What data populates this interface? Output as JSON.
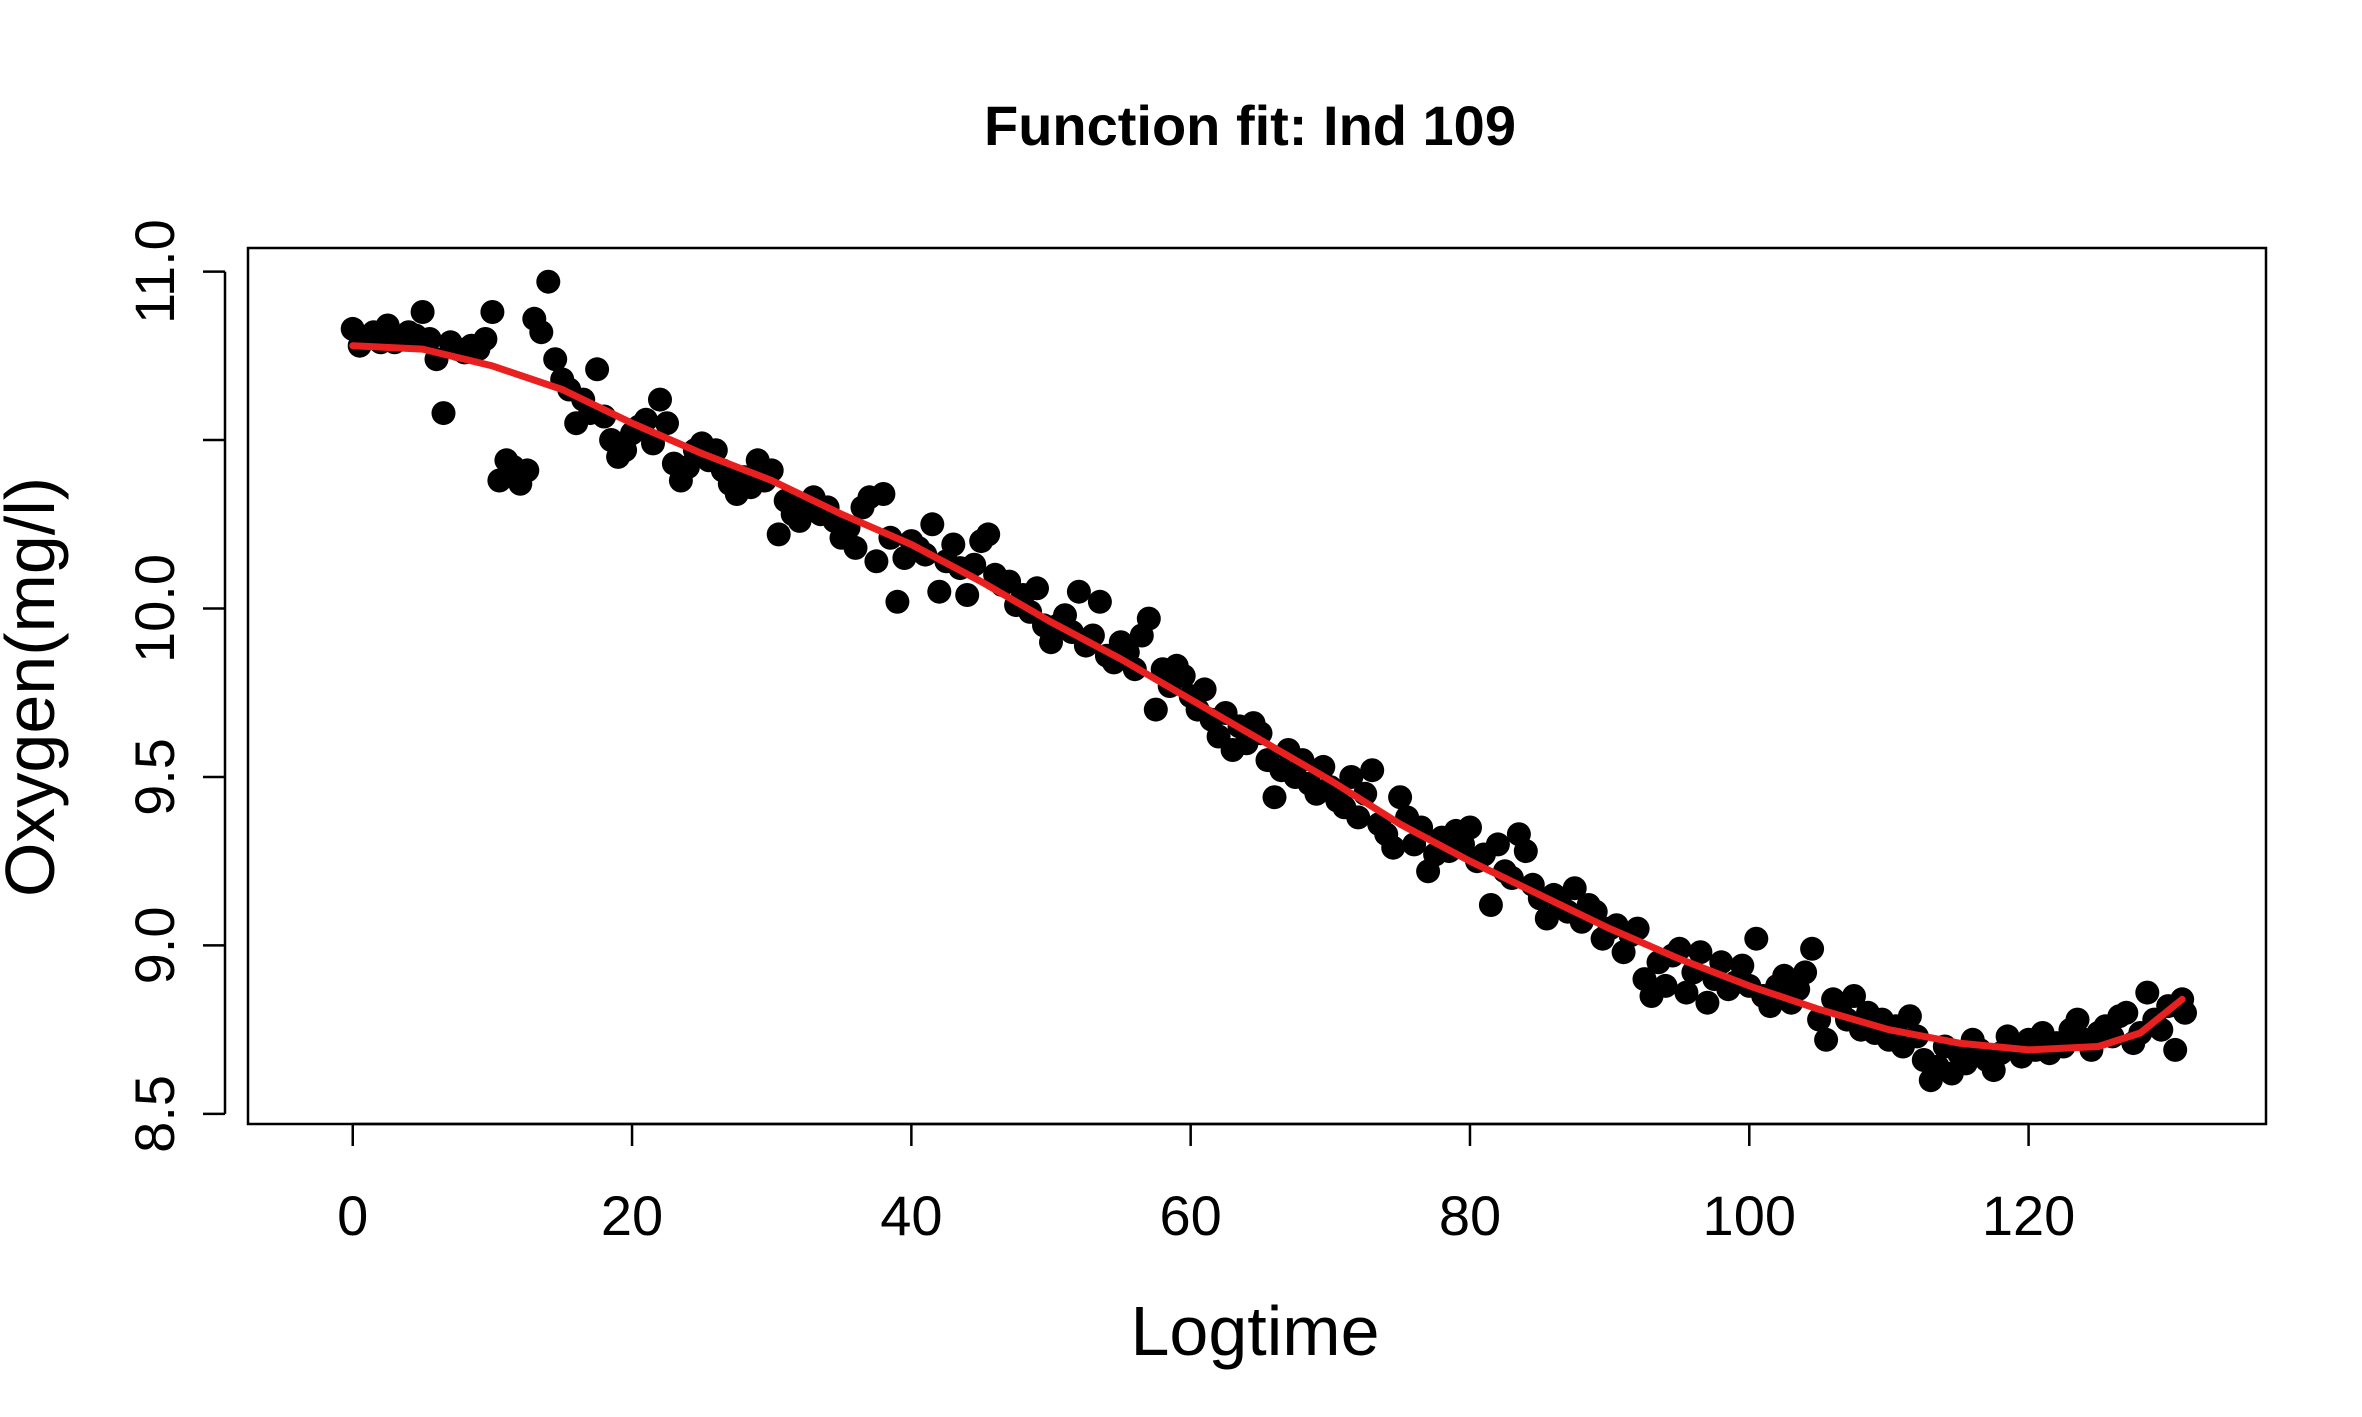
{
  "chart_data": {
    "type": "scatter",
    "title": "Function fit: Ind 109",
    "xlabel": "Logtime",
    "ylabel": "Oxygen(mg/l)",
    "xlim": [
      -7.5,
      137
    ],
    "ylim": [
      8.47,
      11.07
    ],
    "x_ticks": [
      0,
      20,
      40,
      60,
      80,
      100,
      120
    ],
    "x_tick_labels": [
      "0",
      "20",
      "40",
      "60",
      "80",
      "100",
      "120"
    ],
    "y_ticks": [
      8.5,
      9.0,
      9.5,
      10.0,
      10.5,
      11.0
    ],
    "y_tick_labels": [
      "8.5",
      "9.0",
      "9.5",
      "10.0",
      "",
      "11.0"
    ],
    "grid": false,
    "legend": "none",
    "series": [
      {
        "type": "scatter",
        "color": "#000000",
        "points": [
          [
            0,
            10.83
          ],
          [
            0.5,
            10.78
          ],
          [
            1,
            10.8
          ],
          [
            1.5,
            10.82
          ],
          [
            2,
            10.79
          ],
          [
            2.5,
            10.84
          ],
          [
            3,
            10.79
          ],
          [
            3.5,
            10.8
          ],
          [
            4,
            10.82
          ],
          [
            4.5,
            10.81
          ],
          [
            5,
            10.88
          ],
          [
            5.5,
            10.8
          ],
          [
            6,
            10.74
          ],
          [
            6.5,
            10.58
          ],
          [
            7,
            10.79
          ],
          [
            7.5,
            10.77
          ],
          [
            8,
            10.76
          ],
          [
            8.5,
            10.78
          ],
          [
            9,
            10.77
          ],
          [
            9.5,
            10.8
          ],
          [
            10,
            10.88
          ],
          [
            10.5,
            10.38
          ],
          [
            11,
            10.44
          ],
          [
            11.5,
            10.42
          ],
          [
            12,
            10.37
          ],
          [
            12.5,
            10.41
          ],
          [
            13,
            10.86
          ],
          [
            13.5,
            10.82
          ],
          [
            14,
            10.97
          ],
          [
            14.5,
            10.74
          ],
          [
            15,
            10.68
          ],
          [
            15.5,
            10.65
          ],
          [
            16,
            10.55
          ],
          [
            16.5,
            10.62
          ],
          [
            17,
            10.58
          ],
          [
            17.5,
            10.71
          ],
          [
            18,
            10.57
          ],
          [
            18.5,
            10.5
          ],
          [
            19,
            10.45
          ],
          [
            19.5,
            10.47
          ],
          [
            20,
            10.52
          ],
          [
            20.5,
            10.54
          ],
          [
            21,
            10.56
          ],
          [
            21.5,
            10.49
          ],
          [
            22,
            10.62
          ],
          [
            22.5,
            10.55
          ],
          [
            23,
            10.43
          ],
          [
            23.5,
            10.38
          ],
          [
            24,
            10.42
          ],
          [
            24.5,
            10.47
          ],
          [
            25,
            10.49
          ],
          [
            25.5,
            10.44
          ],
          [
            26,
            10.47
          ],
          [
            26.5,
            10.41
          ],
          [
            27,
            10.37
          ],
          [
            27.5,
            10.34
          ],
          [
            28,
            10.39
          ],
          [
            28.5,
            10.36
          ],
          [
            29,
            10.44
          ],
          [
            29.5,
            10.38
          ],
          [
            30,
            10.41
          ],
          [
            30.5,
            10.22
          ],
          [
            31,
            10.32
          ],
          [
            31.5,
            10.28
          ],
          [
            32,
            10.26
          ],
          [
            32.5,
            10.31
          ],
          [
            33,
            10.33
          ],
          [
            33.5,
            10.28
          ],
          [
            34,
            10.3
          ],
          [
            34.5,
            10.26
          ],
          [
            35,
            10.21
          ],
          [
            35.5,
            10.24
          ],
          [
            36,
            10.18
          ],
          [
            36.5,
            10.3
          ],
          [
            37,
            10.33
          ],
          [
            37.5,
            10.14
          ],
          [
            38,
            10.34
          ],
          [
            38.5,
            10.21
          ],
          [
            39,
            10.02
          ],
          [
            39.5,
            10.15
          ],
          [
            40,
            10.2
          ],
          [
            40.5,
            10.18
          ],
          [
            41,
            10.16
          ],
          [
            41.5,
            10.25
          ],
          [
            42,
            10.05
          ],
          [
            42.5,
            10.14
          ],
          [
            43,
            10.19
          ],
          [
            43.5,
            10.12
          ],
          [
            44,
            10.04
          ],
          [
            44.5,
            10.13
          ],
          [
            45,
            10.2
          ],
          [
            45.5,
            10.22
          ],
          [
            46,
            10.1
          ],
          [
            46.5,
            10.07
          ],
          [
            47,
            10.08
          ],
          [
            47.5,
            10.01
          ],
          [
            48,
            10.04
          ],
          [
            48.5,
            9.99
          ],
          [
            49,
            10.06
          ],
          [
            49.5,
            9.95
          ],
          [
            50,
            9.9
          ],
          [
            50.5,
            9.95
          ],
          [
            51,
            9.98
          ],
          [
            51.5,
            9.93
          ],
          [
            52,
            10.05
          ],
          [
            52.5,
            9.89
          ],
          [
            53,
            9.92
          ],
          [
            53.5,
            10.02
          ],
          [
            54,
            9.86
          ],
          [
            54.5,
            9.84
          ],
          [
            55,
            9.9
          ],
          [
            55.5,
            9.87
          ],
          [
            56,
            9.82
          ],
          [
            56.5,
            9.92
          ],
          [
            57,
            9.97
          ],
          [
            57.5,
            9.7
          ],
          [
            58,
            9.82
          ],
          [
            58.5,
            9.77
          ],
          [
            59,
            9.83
          ],
          [
            59.5,
            9.8
          ],
          [
            60,
            9.74
          ],
          [
            60.5,
            9.7
          ],
          [
            61,
            9.76
          ],
          [
            61.5,
            9.67
          ],
          [
            62,
            9.62
          ],
          [
            62.5,
            9.69
          ],
          [
            63,
            9.58
          ],
          [
            63.5,
            9.65
          ],
          [
            64,
            9.6
          ],
          [
            64.5,
            9.66
          ],
          [
            65,
            9.63
          ],
          [
            65.5,
            9.55
          ],
          [
            66,
            9.44
          ],
          [
            66.5,
            9.52
          ],
          [
            67,
            9.58
          ],
          [
            67.5,
            9.5
          ],
          [
            68,
            9.55
          ],
          [
            68.5,
            9.48
          ],
          [
            69,
            9.45
          ],
          [
            69.5,
            9.53
          ],
          [
            70,
            9.47
          ],
          [
            70.5,
            9.43
          ],
          [
            71,
            9.41
          ],
          [
            71.5,
            9.5
          ],
          [
            72,
            9.38
          ],
          [
            72.5,
            9.45
          ],
          [
            73,
            9.52
          ],
          [
            73.5,
            9.36
          ],
          [
            74,
            9.33
          ],
          [
            74.5,
            9.29
          ],
          [
            75,
            9.44
          ],
          [
            75.5,
            9.38
          ],
          [
            76,
            9.3
          ],
          [
            76.5,
            9.35
          ],
          [
            77,
            9.22
          ],
          [
            77.5,
            9.27
          ],
          [
            78,
            9.32
          ],
          [
            78.5,
            9.28
          ],
          [
            79,
            9.34
          ],
          [
            79.5,
            9.3
          ],
          [
            80,
            9.35
          ],
          [
            80.5,
            9.25
          ],
          [
            81,
            9.27
          ],
          [
            81.5,
            9.12
          ],
          [
            82,
            9.3
          ],
          [
            82.5,
            9.22
          ],
          [
            83,
            9.2
          ],
          [
            83.5,
            9.33
          ],
          [
            84,
            9.28
          ],
          [
            84.5,
            9.18
          ],
          [
            85,
            9.14
          ],
          [
            85.5,
            9.08
          ],
          [
            86,
            9.15
          ],
          [
            86.5,
            9.12
          ],
          [
            87,
            9.1
          ],
          [
            87.5,
            9.17
          ],
          [
            88,
            9.07
          ],
          [
            88.5,
            9.12
          ],
          [
            89,
            9.1
          ],
          [
            89.5,
            9.02
          ],
          [
            90,
            9.05
          ],
          [
            90.5,
            9.06
          ],
          [
            91,
            8.98
          ],
          [
            91.5,
            9.03
          ],
          [
            92,
            9.05
          ],
          [
            92.5,
            8.9
          ],
          [
            93,
            8.85
          ],
          [
            93.5,
            8.95
          ],
          [
            94,
            8.88
          ],
          [
            94.5,
            8.97
          ],
          [
            95,
            8.99
          ],
          [
            95.5,
            8.86
          ],
          [
            96,
            8.92
          ],
          [
            96.5,
            8.98
          ],
          [
            97,
            8.83
          ],
          [
            97.5,
            8.9
          ],
          [
            98,
            8.95
          ],
          [
            98.5,
            8.87
          ],
          [
            99,
            8.89
          ],
          [
            99.5,
            8.94
          ],
          [
            100,
            8.88
          ],
          [
            100.5,
            9.02
          ],
          [
            101,
            8.85
          ],
          [
            101.5,
            8.82
          ],
          [
            102,
            8.88
          ],
          [
            102.5,
            8.91
          ],
          [
            103,
            8.83
          ],
          [
            103.5,
            8.87
          ],
          [
            104,
            8.92
          ],
          [
            104.5,
            8.99
          ],
          [
            105,
            8.78
          ],
          [
            105.5,
            8.72
          ],
          [
            106,
            8.84
          ],
          [
            106.5,
            8.82
          ],
          [
            107,
            8.78
          ],
          [
            107.5,
            8.85
          ],
          [
            108,
            8.75
          ],
          [
            108.5,
            8.8
          ],
          [
            109,
            8.74
          ],
          [
            109.5,
            8.78
          ],
          [
            110,
            8.72
          ],
          [
            110.5,
            8.76
          ],
          [
            111,
            8.7
          ],
          [
            111.5,
            8.79
          ],
          [
            112,
            8.73
          ],
          [
            112.5,
            8.66
          ],
          [
            113,
            8.6
          ],
          [
            113.5,
            8.64
          ],
          [
            114,
            8.7
          ],
          [
            114.5,
            8.62
          ],
          [
            115,
            8.68
          ],
          [
            115.5,
            8.65
          ],
          [
            116,
            8.72
          ],
          [
            116.5,
            8.69
          ],
          [
            117,
            8.66
          ],
          [
            117.5,
            8.63
          ],
          [
            118,
            8.68
          ],
          [
            118.5,
            8.73
          ],
          [
            119,
            8.7
          ],
          [
            119.5,
            8.67
          ],
          [
            120,
            8.72
          ],
          [
            120.5,
            8.69
          ],
          [
            121,
            8.74
          ],
          [
            121.5,
            8.68
          ],
          [
            122,
            8.71
          ],
          [
            122.5,
            8.7
          ],
          [
            123,
            8.75
          ],
          [
            123.5,
            8.78
          ],
          [
            124,
            8.72
          ],
          [
            124.5,
            8.69
          ],
          [
            125,
            8.74
          ],
          [
            125.5,
            8.76
          ],
          [
            126,
            8.73
          ],
          [
            126.5,
            8.79
          ],
          [
            127,
            8.8
          ],
          [
            127.5,
            8.71
          ],
          [
            128,
            8.74
          ],
          [
            128.5,
            8.86
          ],
          [
            129,
            8.78
          ],
          [
            129.5,
            8.75
          ],
          [
            130,
            8.82
          ],
          [
            130.5,
            8.69
          ],
          [
            131,
            8.84
          ],
          [
            131.2,
            8.8
          ]
        ]
      },
      {
        "type": "line",
        "color": "#e8201f",
        "points": [
          [
            0,
            10.78
          ],
          [
            5,
            10.77
          ],
          [
            10,
            10.72
          ],
          [
            15,
            10.65
          ],
          [
            20,
            10.55
          ],
          [
            25,
            10.46
          ],
          [
            30,
            10.38
          ],
          [
            35,
            10.28
          ],
          [
            40,
            10.19
          ],
          [
            45,
            10.08
          ],
          [
            50,
            9.96
          ],
          [
            55,
            9.85
          ],
          [
            60,
            9.73
          ],
          [
            65,
            9.61
          ],
          [
            70,
            9.49
          ],
          [
            75,
            9.36
          ],
          [
            80,
            9.25
          ],
          [
            85,
            9.15
          ],
          [
            90,
            9.05
          ],
          [
            95,
            8.96
          ],
          [
            100,
            8.88
          ],
          [
            105,
            8.81
          ],
          [
            110,
            8.75
          ],
          [
            115,
            8.71
          ],
          [
            120,
            8.69
          ],
          [
            125,
            8.7
          ],
          [
            128,
            8.74
          ],
          [
            131,
            8.84
          ]
        ]
      }
    ]
  }
}
